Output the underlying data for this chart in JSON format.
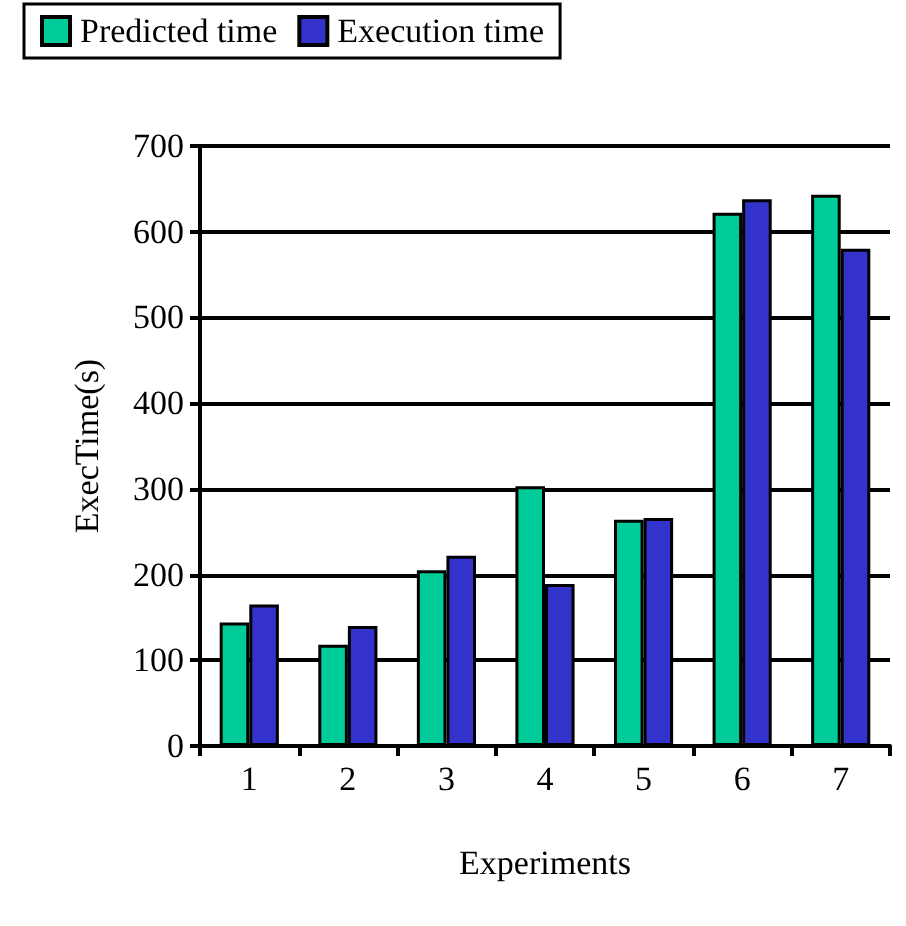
{
  "chart_data": {
    "type": "bar",
    "xlabel": "Experiments",
    "ylabel": "ExecTime(s)",
    "categories": [
      "1",
      "2",
      "3",
      "4",
      "5",
      "6",
      "7"
    ],
    "series": [
      {
        "name": "Predicted time",
        "color": "#00cc99",
        "values": [
          144,
          118,
          205,
          303,
          264,
          622,
          643
        ]
      },
      {
        "name": "Execution time",
        "color": "#3333cc",
        "values": [
          165,
          140,
          222,
          189,
          266,
          638,
          580
        ]
      }
    ],
    "ylim": [
      0,
      700
    ],
    "yticks": [
      0,
      100,
      200,
      300,
      400,
      500,
      600,
      700
    ],
    "grid": "y",
    "legend": "top left"
  }
}
